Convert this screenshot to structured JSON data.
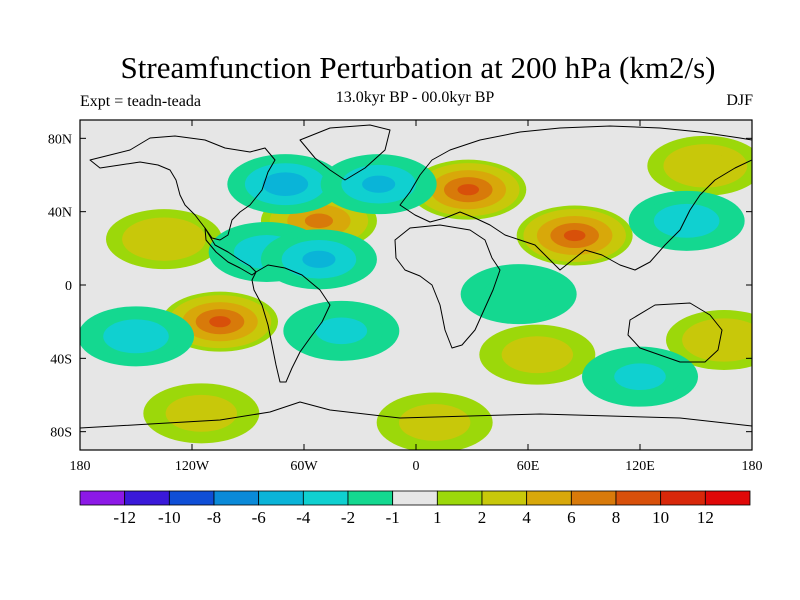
{
  "title": "Streamfunction Perturbation at 200 hPa (km2/s)",
  "subtitle": "13.0kyr BP - 00.0kyr BP",
  "left_label": "Expt = teadn-teada",
  "right_label": "DJF",
  "map": {
    "projection": "equirectangular",
    "lon_range": [
      -180,
      180
    ],
    "lat_range": [
      -90,
      90
    ],
    "lon_ticks": [
      "180",
      "120W",
      "60W",
      "0",
      "60E",
      "120E",
      "180"
    ],
    "lon_tick_values": [
      -180,
      -120,
      -60,
      0,
      60,
      120,
      180
    ],
    "lat_ticks": [
      "80N",
      "40N",
      "0",
      "40S",
      "80S"
    ],
    "lat_tick_values": [
      80,
      40,
      0,
      -40,
      -80
    ],
    "background_color": "#e6e6e6",
    "coastline_color": "#000000",
    "anomaly_centers": [
      {
        "lon": -105,
        "lat": -20,
        "level": 8
      },
      {
        "lon": -135,
        "lat": 25,
        "level": 3
      },
      {
        "lon": -52,
        "lat": 35,
        "level": 6
      },
      {
        "lon": 28,
        "lat": 52,
        "level": 8
      },
      {
        "lon": 85,
        "lat": 27,
        "level": 8
      },
      {
        "lon": 155,
        "lat": 65,
        "level": 3
      },
      {
        "lon": 165,
        "lat": -30,
        "level": 3
      },
      {
        "lon": -115,
        "lat": -70,
        "level": 2
      },
      {
        "lon": 10,
        "lat": -75,
        "level": 2
      },
      {
        "lon": 65,
        "lat": -38,
        "level": 2
      },
      {
        "lon": -70,
        "lat": 55,
        "level": -6
      },
      {
        "lon": -20,
        "lat": 55,
        "level": -5
      },
      {
        "lon": -80,
        "lat": 18,
        "level": -4
      },
      {
        "lon": -52,
        "lat": 14,
        "level": -5
      },
      {
        "lon": -150,
        "lat": -28,
        "level": -4
      },
      {
        "lon": -40,
        "lat": -25,
        "level": -3
      },
      {
        "lon": 145,
        "lat": 35,
        "level": -4
      },
      {
        "lon": 120,
        "lat": -50,
        "level": -3
      },
      {
        "lon": 55,
        "lat": -5,
        "level": -2
      }
    ]
  },
  "colorbar": {
    "levels": [
      "-12",
      "-10",
      "-8",
      "-6",
      "-4",
      "-2",
      "-1",
      "1",
      "2",
      "4",
      "6",
      "8",
      "10",
      "12"
    ],
    "colors": [
      "#8c19e6",
      "#3a19d9",
      "#0f4ed6",
      "#0a8ad8",
      "#0ab4d8",
      "#10d0d0",
      "#14d890",
      "#e6e6e6",
      "#9cd80a",
      "#c8c80a",
      "#d8a80a",
      "#d87a0a",
      "#d8500a",
      "#d8280a",
      "#e00808"
    ]
  }
}
